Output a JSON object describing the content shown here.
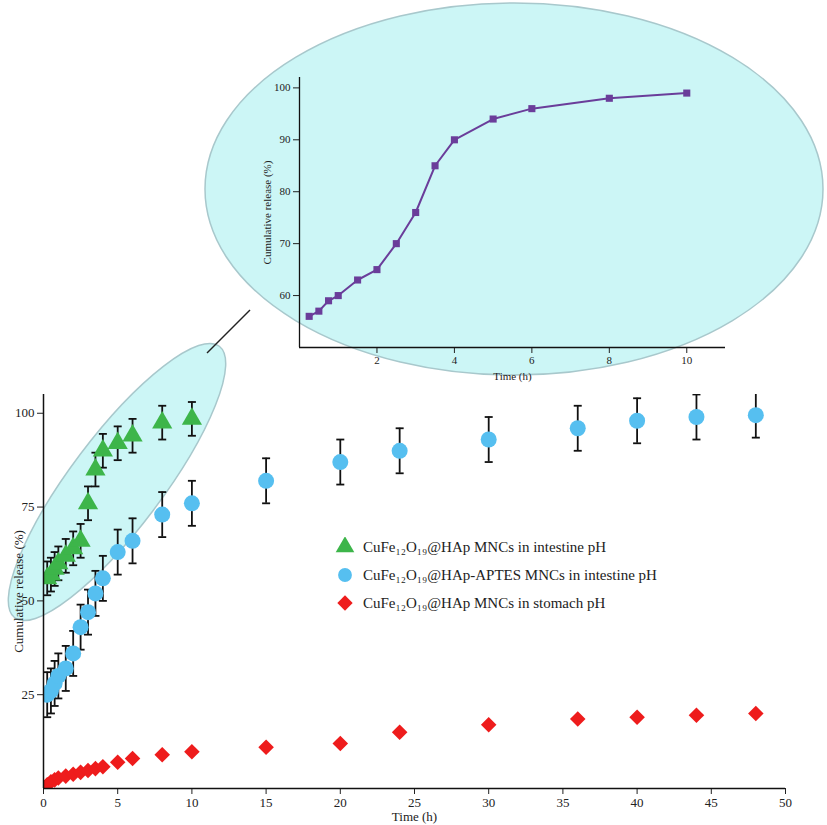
{
  "chart_data": [
    {
      "type": "scatter",
      "x_label": "Time (h)",
      "y_label": "Cumulative release (%)",
      "xlim": [
        0,
        50
      ],
      "xticks": [
        0,
        5,
        10,
        15,
        20,
        25,
        30,
        35,
        40,
        45,
        50
      ],
      "ylim": [
        0,
        105
      ],
      "yticks": [
        25,
        50,
        75,
        100
      ],
      "legend": "right",
      "series": [
        {
          "name": "CuFe₁₂O₁₉@HAp MNCs in intestine pH",
          "color": "#3db54a",
          "marker": "triangle",
          "x": [
            0.25,
            0.5,
            0.75,
            1,
            1.5,
            2,
            2.5,
            3,
            3.5,
            4,
            5,
            6,
            8,
            10
          ],
          "values": [
            56,
            57,
            58.5,
            60,
            62,
            64,
            66,
            76,
            85,
            90,
            92,
            94,
            97.5,
            98.5
          ],
          "errors": [
            4.5,
            4.5,
            4.5,
            4.5,
            4.5,
            4.5,
            4.5,
            4.5,
            4.5,
            4.5,
            4.5,
            4.5,
            4.5,
            4.5
          ]
        },
        {
          "name": "CuFe₁₂O₁₉@HAp-APTES MNCs in intestine pH",
          "color": "#56bff0",
          "marker": "circle",
          "x": [
            0.25,
            0.5,
            0.75,
            1,
            1.5,
            2,
            2.5,
            3,
            3.5,
            4,
            5,
            6,
            8,
            10,
            15,
            20,
            24,
            30,
            36,
            40,
            44,
            48
          ],
          "values": [
            25,
            26,
            28,
            30,
            32,
            36,
            43,
            47,
            52,
            56,
            63,
            66,
            73,
            76,
            82,
            87,
            90,
            93,
            96,
            98,
            99,
            99.5
          ],
          "errors": [
            6,
            6,
            6,
            6,
            6,
            6,
            6,
            6,
            6,
            6,
            6,
            6,
            6,
            6,
            6,
            6,
            6,
            6,
            6,
            6,
            6,
            6
          ]
        },
        {
          "name": "CuFe₁₂O₁₉@HAp MNCs in stomach pH",
          "color": "#ee1c1c",
          "marker": "diamond",
          "x": [
            0.25,
            0.5,
            0.75,
            1,
            1.5,
            2,
            2.5,
            3,
            3.5,
            4,
            5,
            6,
            8,
            10,
            15,
            20,
            24,
            30,
            36,
            40,
            44,
            48
          ],
          "values": [
            1,
            1.8,
            2.3,
            2.8,
            3.3,
            3.8,
            4.3,
            4.8,
            5.3,
            5.8,
            7,
            8,
            9,
            9.8,
            11,
            12,
            15,
            17,
            18.5,
            19,
            19.5,
            20
          ]
        }
      ]
    },
    {
      "type": "line",
      "x_label": "Time (h)",
      "y_label": "Cumulative release (%)",
      "xlim": [
        0,
        11
      ],
      "xticks": [
        2,
        4,
        6,
        8,
        10
      ],
      "ylim": [
        50,
        102
      ],
      "yticks": [
        60,
        70,
        80,
        90,
        100
      ],
      "series": [
        {
          "color": "#6a3d9a",
          "marker": "square",
          "x": [
            0.25,
            0.5,
            0.75,
            1,
            1.5,
            2,
            2.5,
            3,
            3.5,
            4,
            5,
            6,
            8,
            10
          ],
          "values": [
            56,
            57,
            59,
            60,
            63,
            65,
            70,
            76,
            85,
            90,
            94,
            96,
            98,
            99
          ]
        }
      ]
    }
  ]
}
